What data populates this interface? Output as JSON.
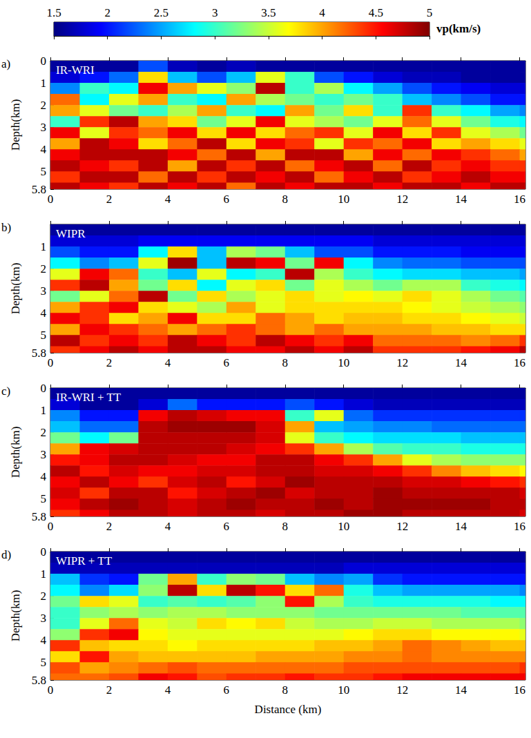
{
  "colorbar": {
    "range": [
      1.5,
      5
    ],
    "ticks": [
      1.5,
      2,
      2.5,
      3,
      3.5,
      4,
      4.5,
      5
    ],
    "label": "vp(km/s)"
  },
  "chart_data": [
    {
      "type": "heatmap",
      "panel": "a)",
      "title": "IR-WRI",
      "y_label": "Depth(km)",
      "xlim": [
        0,
        16.2
      ],
      "xticks": [
        0,
        2,
        4,
        6,
        8,
        10,
        12,
        14,
        16
      ],
      "ylim": [
        0,
        5.8
      ],
      "yticks": [
        0,
        1,
        2,
        3,
        4,
        5,
        5.8
      ],
      "x_edges": [
        0,
        1,
        2,
        3,
        4,
        5,
        6,
        7,
        8,
        9,
        10,
        11,
        12,
        13,
        14,
        15,
        16,
        16.2
      ],
      "depth_edges": [
        0,
        0.5,
        1,
        1.5,
        2,
        2.5,
        3,
        3.5,
        4,
        4.5,
        5,
        5.5,
        5.8
      ],
      "values": [
        [
          1.6,
          1.6,
          1.6,
          2.2,
          1.7,
          1.6,
          1.7,
          1.6,
          1.6,
          1.6,
          1.6,
          1.6,
          1.6,
          1.6,
          1.6,
          1.6,
          1.6
        ],
        [
          1.8,
          2.0,
          2.3,
          3.8,
          2.6,
          2.2,
          2.6,
          3.6,
          3.0,
          2.2,
          2.0,
          1.8,
          1.7,
          1.7,
          1.6,
          1.6,
          1.6
        ],
        [
          2.4,
          3.0,
          2.8,
          4.6,
          4.0,
          3.6,
          3.3,
          4.8,
          3.0,
          3.4,
          2.8,
          2.5,
          2.2,
          2.0,
          1.9,
          1.8,
          1.8
        ],
        [
          4.2,
          2.8,
          3.6,
          4.0,
          3.0,
          2.8,
          4.0,
          3.4,
          3.2,
          3.0,
          3.2,
          3.0,
          2.6,
          2.4,
          2.2,
          2.0,
          2.0
        ],
        [
          4.0,
          3.6,
          3.2,
          3.0,
          3.4,
          4.0,
          3.0,
          2.8,
          4.0,
          3.2,
          3.8,
          3.0,
          4.4,
          3.0,
          2.8,
          2.5,
          2.4
        ],
        [
          3.0,
          4.4,
          4.8,
          4.0,
          3.8,
          3.2,
          3.6,
          4.6,
          3.6,
          3.4,
          3.2,
          3.6,
          4.2,
          3.6,
          3.2,
          2.9,
          2.8
        ],
        [
          4.6,
          3.6,
          4.4,
          4.2,
          4.6,
          3.8,
          4.6,
          3.8,
          4.2,
          4.4,
          3.6,
          4.6,
          3.8,
          4.4,
          3.6,
          3.4,
          3.2
        ],
        [
          4.0,
          4.8,
          4.6,
          3.8,
          4.2,
          4.8,
          3.8,
          4.6,
          4.4,
          3.6,
          4.4,
          4.2,
          4.6,
          3.8,
          4.0,
          3.8,
          3.6
        ],
        [
          4.6,
          4.8,
          4.8,
          4.8,
          4.6,
          4.2,
          4.8,
          4.0,
          4.8,
          4.8,
          4.0,
          4.6,
          4.2,
          4.6,
          4.4,
          4.2,
          4.0
        ],
        [
          4.8,
          4.6,
          4.4,
          4.8,
          4.0,
          4.8,
          4.4,
          4.8,
          4.2,
          4.6,
          4.8,
          4.2,
          4.8,
          4.4,
          4.6,
          4.4,
          4.4
        ],
        [
          4.4,
          4.8,
          4.8,
          4.2,
          4.8,
          4.4,
          4.8,
          4.6,
          4.8,
          4.2,
          4.6,
          4.8,
          4.4,
          4.6,
          4.8,
          4.6,
          4.6
        ],
        [
          4.8,
          4.6,
          4.4,
          4.8,
          4.6,
          4.8,
          4.2,
          4.8,
          4.6,
          4.8,
          4.8,
          4.6,
          4.8,
          4.8,
          4.6,
          4.8,
          4.8
        ]
      ]
    },
    {
      "type": "heatmap",
      "panel": "b)",
      "title": "WIPR",
      "y_label": "Depth(km)",
      "xlim": [
        0,
        16.2
      ],
      "xticks": [
        0,
        2,
        4,
        6,
        8,
        10,
        12,
        14,
        16
      ],
      "ylim": [
        0,
        5.8
      ],
      "yticks": [
        1,
        2,
        3,
        4,
        5,
        5.8
      ],
      "x_edges": [
        0,
        1,
        2,
        3,
        4,
        5,
        6,
        7,
        8,
        9,
        10,
        11,
        12,
        13,
        14,
        15,
        16,
        16.2
      ],
      "depth_edges": [
        0,
        0.5,
        1,
        1.5,
        2,
        2.5,
        3,
        3.5,
        4,
        4.5,
        5,
        5.5,
        5.8
      ],
      "values": [
        [
          1.6,
          1.6,
          1.6,
          1.6,
          1.6,
          1.6,
          1.6,
          1.6,
          1.6,
          1.6,
          1.6,
          1.6,
          1.6,
          1.6,
          1.6,
          1.6,
          1.6
        ],
        [
          1.8,
          1.8,
          1.8,
          1.9,
          1.9,
          1.9,
          1.9,
          1.9,
          1.9,
          1.9,
          1.9,
          1.8,
          1.8,
          1.8,
          1.8,
          1.8,
          1.8
        ],
        [
          2.2,
          2.0,
          2.0,
          2.8,
          3.8,
          2.6,
          3.4,
          3.2,
          2.6,
          2.2,
          2.2,
          2.0,
          2.0,
          2.0,
          1.9,
          1.9,
          1.9
        ],
        [
          2.8,
          2.4,
          2.6,
          3.6,
          4.9,
          2.6,
          4.8,
          4.6,
          3.2,
          4.6,
          2.8,
          2.4,
          2.3,
          2.3,
          2.2,
          2.2,
          2.2
        ],
        [
          3.6,
          4.6,
          4.2,
          3.0,
          2.6,
          3.6,
          2.8,
          3.0,
          4.8,
          3.4,
          3.0,
          2.8,
          2.7,
          2.7,
          2.6,
          2.6,
          2.5
        ],
        [
          4.4,
          4.8,
          4.0,
          3.2,
          3.8,
          2.8,
          3.6,
          3.8,
          3.2,
          3.6,
          3.4,
          3.2,
          3.4,
          3.4,
          3.0,
          2.9,
          2.8
        ],
        [
          3.2,
          3.6,
          4.2,
          4.8,
          3.2,
          3.8,
          3.4,
          3.6,
          3.8,
          3.6,
          3.7,
          3.6,
          3.8,
          3.6,
          3.4,
          3.2,
          3.1
        ],
        [
          4.0,
          4.4,
          4.6,
          3.8,
          3.6,
          3.4,
          4.0,
          3.6,
          3.8,
          3.8,
          3.8,
          3.8,
          3.7,
          3.6,
          3.5,
          3.4,
          3.3
        ],
        [
          4.6,
          4.4,
          3.8,
          4.0,
          4.6,
          3.8,
          3.8,
          4.2,
          4.0,
          3.8,
          3.9,
          3.9,
          3.8,
          3.8,
          3.7,
          3.6,
          3.5
        ],
        [
          4.0,
          4.6,
          4.4,
          4.2,
          4.0,
          4.2,
          4.4,
          4.2,
          4.0,
          4.2,
          4.0,
          4.0,
          4.0,
          3.9,
          3.9,
          3.8,
          3.8
        ],
        [
          4.8,
          4.4,
          4.6,
          4.4,
          4.8,
          4.6,
          4.4,
          4.8,
          4.6,
          4.4,
          4.6,
          4.2,
          4.2,
          4.2,
          4.1,
          4.2,
          4.4
        ],
        [
          4.4,
          4.6,
          4.8,
          4.6,
          4.8,
          4.8,
          4.6,
          4.6,
          4.8,
          4.6,
          4.8,
          4.4,
          4.4,
          4.4,
          4.5,
          4.6,
          4.8
        ]
      ]
    },
    {
      "type": "heatmap",
      "panel": "c)",
      "title": "IR-WRI + TT",
      "y_label": "Depth(km)",
      "xlim": [
        0,
        16.2
      ],
      "xticks": [
        0,
        2,
        4,
        6,
        8,
        10,
        12,
        14,
        16
      ],
      "ylim": [
        0,
        5.8
      ],
      "yticks": [
        0,
        1,
        2,
        3,
        4,
        5,
        5.8
      ],
      "x_edges": [
        0,
        1,
        2,
        3,
        4,
        5,
        6,
        7,
        8,
        9,
        10,
        11,
        12,
        13,
        14,
        15,
        16,
        16.2
      ],
      "depth_edges": [
        0,
        0.5,
        1,
        1.5,
        2,
        2.5,
        3,
        3.5,
        4,
        4.5,
        5,
        5.5,
        5.8
      ],
      "values": [
        [
          1.6,
          1.6,
          1.6,
          1.6,
          1.6,
          1.6,
          1.6,
          1.6,
          1.6,
          1.6,
          1.6,
          1.6,
          1.6,
          1.6,
          1.6,
          1.6,
          1.6
        ],
        [
          1.8,
          1.6,
          1.6,
          1.8,
          2.3,
          2.0,
          2.0,
          2.0,
          2.2,
          2.0,
          1.8,
          1.7,
          1.7,
          1.7,
          1.7,
          1.7,
          1.7
        ],
        [
          2.4,
          2.0,
          2.0,
          4.6,
          4.8,
          4.7,
          4.6,
          4.6,
          3.0,
          3.6,
          2.3,
          2.1,
          2.1,
          2.1,
          2.1,
          2.1,
          2.1
        ],
        [
          2.6,
          2.3,
          2.3,
          4.8,
          4.9,
          4.9,
          4.9,
          4.7,
          4.0,
          2.6,
          2.5,
          2.4,
          2.4,
          2.3,
          2.3,
          2.3,
          2.3
        ],
        [
          3.2,
          2.8,
          3.2,
          4.8,
          4.8,
          4.8,
          4.8,
          4.7,
          3.6,
          3.0,
          2.8,
          2.7,
          2.7,
          2.7,
          2.6,
          2.6,
          2.6
        ],
        [
          4.0,
          4.6,
          4.7,
          4.8,
          4.8,
          4.8,
          4.7,
          4.6,
          4.4,
          4.0,
          3.4,
          3.1,
          3.0,
          3.0,
          2.9,
          2.9,
          2.9
        ],
        [
          4.5,
          4.6,
          4.8,
          4.8,
          4.7,
          4.6,
          4.6,
          4.8,
          4.8,
          4.6,
          4.4,
          4.0,
          3.6,
          3.4,
          3.3,
          3.3,
          3.3
        ],
        [
          4.8,
          4.5,
          4.7,
          4.6,
          4.6,
          4.7,
          4.7,
          4.8,
          4.8,
          4.7,
          4.7,
          4.6,
          4.4,
          4.1,
          3.9,
          3.8,
          3.7
        ],
        [
          4.6,
          4.8,
          4.6,
          4.4,
          4.7,
          4.8,
          4.5,
          4.7,
          4.9,
          4.8,
          4.8,
          4.8,
          4.7,
          4.7,
          4.6,
          4.5,
          4.4
        ],
        [
          4.7,
          4.4,
          4.8,
          4.8,
          4.5,
          4.7,
          4.8,
          4.9,
          4.7,
          4.8,
          4.8,
          4.9,
          4.8,
          4.8,
          4.8,
          4.8,
          4.7
        ],
        [
          4.6,
          4.8,
          4.9,
          4.8,
          4.7,
          4.8,
          4.9,
          4.8,
          4.8,
          4.9,
          4.8,
          4.9,
          4.9,
          4.9,
          4.9,
          4.8,
          4.8
        ],
        [
          4.4,
          4.6,
          4.8,
          4.8,
          4.7,
          4.8,
          4.8,
          4.7,
          4.8,
          4.8,
          4.9,
          4.9,
          4.8,
          4.8,
          4.8,
          4.8,
          4.7
        ]
      ]
    },
    {
      "type": "heatmap",
      "panel": "d)",
      "title": "WIPR + TT",
      "y_label": "Depth(km)",
      "x_label": "Distance (km)",
      "xlim": [
        0,
        16.2
      ],
      "xticks": [
        0,
        2,
        4,
        6,
        8,
        10,
        12,
        14,
        16
      ],
      "ylim": [
        0,
        5.8
      ],
      "yticks": [
        0,
        1,
        2,
        3,
        4,
        5,
        5.8
      ],
      "x_edges": [
        0,
        1,
        2,
        3,
        4,
        5,
        6,
        7,
        8,
        9,
        10,
        11,
        12,
        13,
        14,
        15,
        16,
        16.2
      ],
      "depth_edges": [
        0,
        0.5,
        1,
        1.5,
        2,
        2.5,
        3,
        3.5,
        4,
        4.5,
        5,
        5.5,
        5.8
      ],
      "values": [
        [
          1.6,
          1.6,
          1.6,
          1.6,
          1.6,
          1.6,
          1.6,
          1.6,
          1.6,
          1.6,
          1.6,
          1.6,
          1.6,
          1.6,
          1.6,
          1.6,
          1.6
        ],
        [
          1.7,
          1.7,
          1.7,
          1.7,
          1.7,
          1.7,
          1.7,
          1.7,
          1.7,
          1.7,
          1.8,
          1.8,
          1.8,
          1.8,
          1.8,
          1.8,
          1.8
        ],
        [
          2.6,
          2.1,
          2.0,
          3.2,
          4.0,
          3.0,
          3.3,
          3.2,
          2.6,
          2.4,
          2.5,
          2.1,
          2.0,
          2.0,
          2.0,
          2.0,
          2.0
        ],
        [
          2.8,
          2.4,
          2.7,
          3.3,
          4.8,
          3.8,
          4.8,
          4.5,
          3.8,
          4.2,
          2.9,
          2.6,
          2.5,
          2.5,
          2.5,
          2.5,
          2.4
        ],
        [
          3.2,
          3.8,
          3.6,
          3.0,
          3.1,
          3.0,
          3.1,
          3.3,
          4.5,
          3.4,
          3.0,
          2.9,
          2.9,
          2.9,
          2.9,
          2.8,
          2.8
        ],
        [
          3.0,
          3.3,
          3.4,
          3.3,
          3.4,
          3.4,
          3.3,
          3.3,
          3.3,
          3.2,
          3.2,
          3.2,
          3.2,
          3.2,
          3.1,
          3.1,
          3.1
        ],
        [
          3.0,
          3.6,
          4.2,
          3.6,
          3.5,
          3.8,
          3.7,
          3.8,
          3.5,
          3.4,
          3.4,
          3.5,
          3.5,
          3.4,
          3.4,
          3.4,
          3.3
        ],
        [
          3.3,
          4.4,
          4.6,
          3.7,
          3.6,
          3.6,
          3.6,
          3.6,
          3.6,
          3.6,
          3.7,
          3.8,
          3.8,
          3.7,
          3.7,
          3.7,
          3.6
        ],
        [
          4.4,
          3.9,
          3.8,
          3.8,
          3.7,
          3.8,
          3.8,
          3.8,
          3.8,
          3.9,
          3.9,
          4.0,
          4.2,
          4.1,
          4.0,
          3.9,
          3.9
        ],
        [
          3.8,
          4.5,
          4.0,
          3.9,
          3.9,
          3.9,
          3.9,
          4.0,
          4.0,
          4.0,
          4.1,
          4.1,
          4.2,
          4.1,
          4.1,
          4.1,
          4.1
        ],
        [
          4.3,
          4.0,
          4.1,
          4.2,
          4.3,
          4.2,
          4.2,
          4.2,
          4.2,
          4.2,
          4.3,
          4.3,
          4.3,
          4.3,
          4.3,
          4.3,
          4.4
        ],
        [
          4.2,
          4.2,
          4.3,
          4.6,
          4.5,
          4.3,
          4.4,
          4.4,
          4.5,
          4.4,
          4.4,
          4.5,
          4.6,
          4.6,
          4.6,
          4.6,
          4.6
        ]
      ]
    }
  ]
}
